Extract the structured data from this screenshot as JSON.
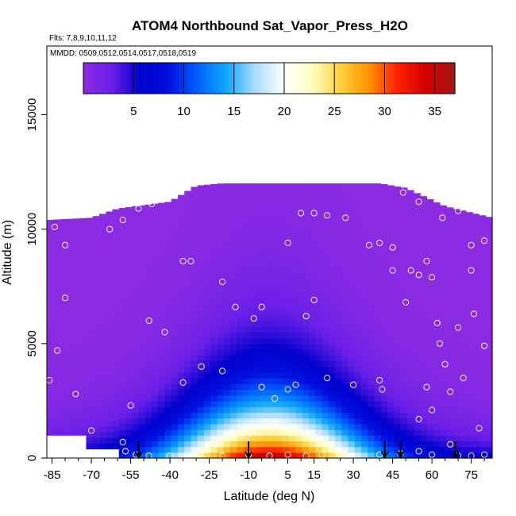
{
  "chart_data": {
    "type": "heatmap",
    "title": "ATOM4 Northbound Sat_Vapor_Press_H2O",
    "flights_label": "Flts: 7,8,9,10,11,12",
    "dates_label": "MMDD: 0509,0512,0514,0517,0518,0519",
    "xlabel": "Latitude (deg N)",
    "ylabel": "Altitude (m)",
    "xlim": [
      -87,
      83
    ],
    "ylim": [
      0,
      18000
    ],
    "xticks": [
      -85,
      -70,
      -55,
      -40,
      -25,
      -10,
      5,
      15,
      30,
      45,
      60,
      75
    ],
    "xtick_labels": [
      "-85",
      "-70",
      "-55",
      "-40",
      "-25",
      "-10",
      "5",
      "15",
      "30",
      "45",
      "60",
      "75"
    ],
    "yticks": [
      0,
      5000,
      10000,
      15000
    ],
    "ytick_labels": [
      "0",
      "5000",
      "10000",
      "15000"
    ],
    "colorbar": {
      "range": [
        0,
        37
      ],
      "ticks": [
        5,
        10,
        15,
        20,
        25,
        30,
        35
      ],
      "tick_labels": [
        "5",
        "10",
        "15",
        "20",
        "25",
        "30",
        "35"
      ],
      "colors": [
        "#8b2be2",
        "#6a1fe8",
        "#0000cd",
        "#0010e0",
        "#0060ff",
        "#10a8ff",
        "#a8dcff",
        "#ffffff",
        "#ffffc0",
        "#ffd040",
        "#ff9000",
        "#ff2000",
        "#d00000",
        "#a01818"
      ],
      "position": "top inside plot"
    },
    "field_model": "sat_vapor_press vs latitude and altitude; maximum about 36 near the equator at the surface, decreasing poleward and with altitude to about 0 above 8000 m",
    "top_of_data_m": [
      [
        -87,
        10400
      ],
      [
        -70,
        10500
      ],
      [
        -60,
        10900
      ],
      [
        -40,
        11200
      ],
      [
        -30,
        11900
      ],
      [
        -20,
        12000
      ],
      [
        40,
        12000
      ],
      [
        50,
        11800
      ],
      [
        65,
        11000
      ],
      [
        83,
        10500
      ]
    ],
    "bottom_gaps": [
      {
        "lat_range": [
          -87,
          -72
        ],
        "alt_top_m": 1000
      },
      {
        "lat_range": [
          -72,
          -60
        ],
        "alt_top_m": 400
      }
    ],
    "sample_points": [
      [
        -84,
        10100
      ],
      [
        -80,
        9300
      ],
      [
        -76,
        10600
      ],
      [
        -63,
        10000
      ],
      [
        -58,
        10400
      ],
      [
        -52,
        10900
      ],
      [
        -47,
        11100
      ],
      [
        -35,
        8600
      ],
      [
        -32,
        8600
      ],
      [
        -20,
        7700
      ],
      [
        -15,
        6600
      ],
      [
        -8,
        6100
      ],
      [
        -5,
        6600
      ],
      [
        5,
        9400
      ],
      [
        10,
        10700
      ],
      [
        15,
        10700
      ],
      [
        20,
        10600
      ],
      [
        27,
        10500
      ],
      [
        36,
        9300
      ],
      [
        40,
        9400
      ],
      [
        45,
        9200
      ],
      [
        49,
        11600
      ],
      [
        55,
        11200
      ],
      [
        64,
        10500
      ],
      [
        70,
        10800
      ],
      [
        75,
        9300
      ],
      [
        78,
        10800
      ],
      [
        80,
        9500
      ],
      [
        -86,
        3400
      ],
      [
        -83,
        4700
      ],
      [
        -80,
        7000
      ],
      [
        -76,
        2800
      ],
      [
        -70,
        1200
      ],
      [
        -55,
        2300
      ],
      [
        -48,
        6000
      ],
      [
        -42,
        5500
      ],
      [
        -35,
        3300
      ],
      [
        -28,
        4000
      ],
      [
        -20,
        3800
      ],
      [
        -5,
        3100
      ],
      [
        0,
        2600
      ],
      [
        5,
        3000
      ],
      [
        8,
        3200
      ],
      [
        12,
        6200
      ],
      [
        15,
        6900
      ],
      [
        20,
        3500
      ],
      [
        30,
        3200
      ],
      [
        40,
        3400
      ],
      [
        41,
        3000
      ],
      [
        45,
        8200
      ],
      [
        50,
        6800
      ],
      [
        52,
        8200
      ],
      [
        55,
        8000
      ],
      [
        58,
        8600
      ],
      [
        60,
        7900
      ],
      [
        62,
        5900
      ],
      [
        63,
        5000
      ],
      [
        65,
        4100
      ],
      [
        67,
        2900
      ],
      [
        70,
        5700
      ],
      [
        72,
        3500
      ],
      [
        75,
        8200
      ],
      [
        76,
        6300
      ],
      [
        78,
        1300
      ],
      [
        80,
        4900
      ],
      [
        55,
        1700
      ],
      [
        58,
        3100
      ],
      [
        60,
        2100
      ],
      [
        67,
        600
      ],
      [
        -58,
        700
      ],
      [
        -57,
        300
      ],
      [
        -53,
        150
      ],
      [
        -48,
        100
      ],
      [
        -40,
        100
      ],
      [
        -30,
        150
      ],
      [
        -20,
        100
      ],
      [
        -10,
        150
      ],
      [
        -2,
        100
      ],
      [
        5,
        150
      ],
      [
        12,
        100
      ],
      [
        18,
        150
      ],
      [
        28,
        100
      ],
      [
        40,
        150
      ],
      [
        48,
        200
      ],
      [
        55,
        300
      ],
      [
        60,
        150
      ],
      [
        70,
        100
      ],
      [
        75,
        100
      ],
      [
        80,
        150
      ]
    ],
    "arrow_latitudes": [
      -52,
      -10,
      42,
      48,
      69
    ],
    "grid": false,
    "legend": "none"
  }
}
